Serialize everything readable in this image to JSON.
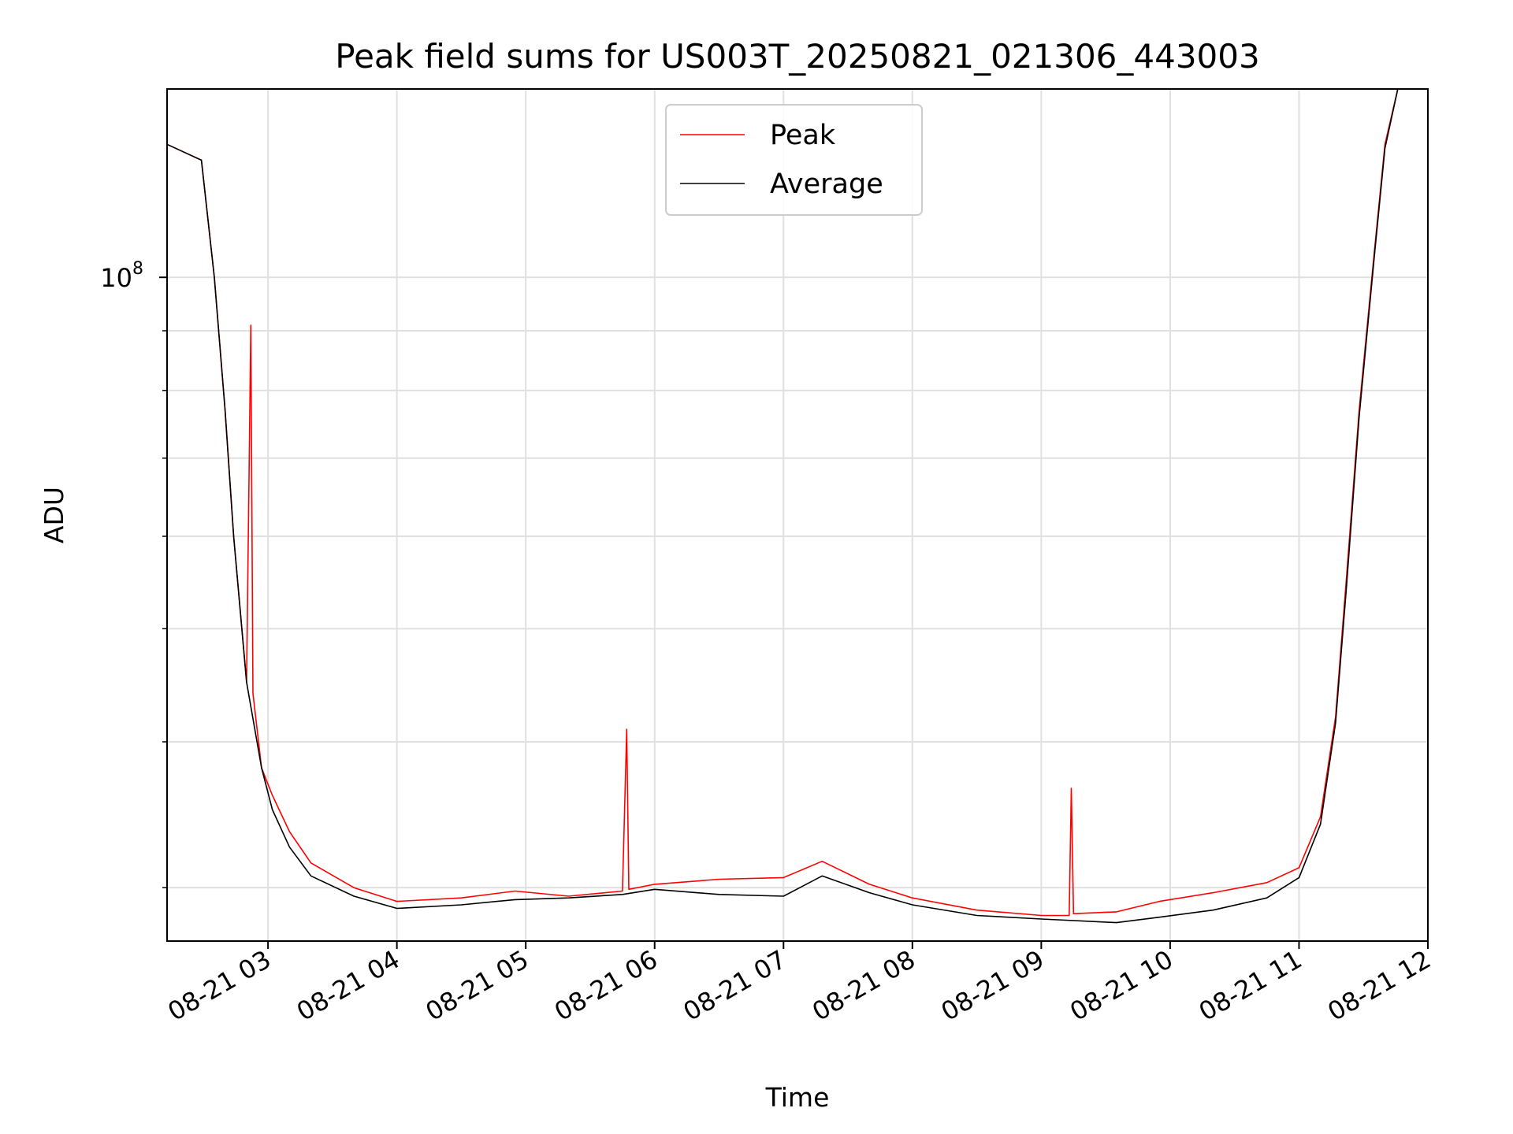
{
  "chart_data": {
    "type": "line",
    "title": "Peak field sums for US003T_20250821_021306_443003",
    "xlabel": "Time",
    "ylabel": "ADU",
    "yscale": "log",
    "xlim": [
      "2025-08-21T02:13",
      "2025-08-21T12:00"
    ],
    "ylim": [
      27000000,
      145000000
    ],
    "grid": true,
    "legend": {
      "position": "top-center"
    },
    "x_ticks": [
      {
        "label": "08-21 03",
        "t": "2025-08-21T03:00"
      },
      {
        "label": "08-21 04",
        "t": "2025-08-21T04:00"
      },
      {
        "label": "08-21 05",
        "t": "2025-08-21T05:00"
      },
      {
        "label": "08-21 06",
        "t": "2025-08-21T06:00"
      },
      {
        "label": "08-21 07",
        "t": "2025-08-21T07:00"
      },
      {
        "label": "08-21 08",
        "t": "2025-08-21T08:00"
      },
      {
        "label": "08-21 09",
        "t": "2025-08-21T09:00"
      },
      {
        "label": "08-21 10",
        "t": "2025-08-21T10:00"
      },
      {
        "label": "08-21 11",
        "t": "2025-08-21T11:00"
      },
      {
        "label": "08-21 12",
        "t": "2025-08-21T12:00"
      }
    ],
    "y_ticks_major": [
      {
        "value": 100000000,
        "base": "10",
        "exp": "8"
      }
    ],
    "y_ticks_minor": [
      30000000,
      40000000,
      50000000,
      60000000,
      70000000,
      80000000,
      90000000
    ],
    "series": [
      {
        "name": "Peak",
        "color": "#ff0000",
        "points": [
          [
            "2025-08-21T02:13",
            130000000
          ],
          [
            "2025-08-21T02:29",
            126000000
          ],
          [
            "2025-08-21T02:35",
            100000000
          ],
          [
            "2025-08-21T02:40",
            77000000
          ],
          [
            "2025-08-21T02:44",
            60000000
          ],
          [
            "2025-08-21T02:50",
            45000000
          ],
          [
            "2025-08-21T02:52",
            91000000
          ],
          [
            "2025-08-21T02:53",
            44000000
          ],
          [
            "2025-08-21T02:57",
            38000000
          ],
          [
            "2025-08-21T03:02",
            36000000
          ],
          [
            "2025-08-21T03:10",
            33500000
          ],
          [
            "2025-08-21T03:20",
            31500000
          ],
          [
            "2025-08-21T03:40",
            30000000
          ],
          [
            "2025-08-21T04:00",
            29200000
          ],
          [
            "2025-08-21T04:30",
            29400000
          ],
          [
            "2025-08-21T04:55",
            29800000
          ],
          [
            "2025-08-21T05:20",
            29500000
          ],
          [
            "2025-08-21T05:45",
            29800000
          ],
          [
            "2025-08-21T05:47",
            41000000
          ],
          [
            "2025-08-21T05:48",
            29900000
          ],
          [
            "2025-08-21T06:00",
            30200000
          ],
          [
            "2025-08-21T06:30",
            30500000
          ],
          [
            "2025-08-21T07:00",
            30600000
          ],
          [
            "2025-08-21T07:18",
            31600000
          ],
          [
            "2025-08-21T07:40",
            30200000
          ],
          [
            "2025-08-21T08:00",
            29400000
          ],
          [
            "2025-08-21T08:30",
            28700000
          ],
          [
            "2025-08-21T09:00",
            28400000
          ],
          [
            "2025-08-21T09:13",
            28400000
          ],
          [
            "2025-08-21T09:14",
            36500000
          ],
          [
            "2025-08-21T09:15",
            28500000
          ],
          [
            "2025-08-21T09:35",
            28600000
          ],
          [
            "2025-08-21T09:55",
            29200000
          ],
          [
            "2025-08-21T10:20",
            29700000
          ],
          [
            "2025-08-21T10:45",
            30300000
          ],
          [
            "2025-08-21T11:00",
            31200000
          ],
          [
            "2025-08-21T11:10",
            34500000
          ],
          [
            "2025-08-21T11:17",
            42000000
          ],
          [
            "2025-08-21T11:22",
            55000000
          ],
          [
            "2025-08-21T11:28",
            77000000
          ],
          [
            "2025-08-21T11:35",
            105000000
          ],
          [
            "2025-08-21T11:40",
            130000000
          ],
          [
            "2025-08-21T11:46",
            145000000
          ]
        ]
      },
      {
        "name": "Average",
        "color": "#000000",
        "points": [
          [
            "2025-08-21T02:13",
            130000000
          ],
          [
            "2025-08-21T02:29",
            126000000
          ],
          [
            "2025-08-21T02:35",
            100000000
          ],
          [
            "2025-08-21T02:40",
            77000000
          ],
          [
            "2025-08-21T02:44",
            60000000
          ],
          [
            "2025-08-21T02:50",
            45000000
          ],
          [
            "2025-08-21T02:57",
            38000000
          ],
          [
            "2025-08-21T03:02",
            35000000
          ],
          [
            "2025-08-21T03:10",
            32500000
          ],
          [
            "2025-08-21T03:20",
            30700000
          ],
          [
            "2025-08-21T03:40",
            29500000
          ],
          [
            "2025-08-21T04:00",
            28800000
          ],
          [
            "2025-08-21T04:30",
            29000000
          ],
          [
            "2025-08-21T04:55",
            29300000
          ],
          [
            "2025-08-21T05:20",
            29400000
          ],
          [
            "2025-08-21T05:45",
            29600000
          ],
          [
            "2025-08-21T06:00",
            29900000
          ],
          [
            "2025-08-21T06:30",
            29600000
          ],
          [
            "2025-08-21T07:00",
            29500000
          ],
          [
            "2025-08-21T07:18",
            30700000
          ],
          [
            "2025-08-21T07:40",
            29700000
          ],
          [
            "2025-08-21T08:00",
            29000000
          ],
          [
            "2025-08-21T08:30",
            28400000
          ],
          [
            "2025-08-21T09:00",
            28200000
          ],
          [
            "2025-08-21T09:35",
            28000000
          ],
          [
            "2025-08-21T09:55",
            28300000
          ],
          [
            "2025-08-21T10:20",
            28700000
          ],
          [
            "2025-08-21T10:45",
            29400000
          ],
          [
            "2025-08-21T11:00",
            30600000
          ],
          [
            "2025-08-21T11:10",
            34000000
          ],
          [
            "2025-08-21T11:17",
            41500000
          ],
          [
            "2025-08-21T11:22",
            54000000
          ],
          [
            "2025-08-21T11:28",
            76000000
          ],
          [
            "2025-08-21T11:35",
            104000000
          ],
          [
            "2025-08-21T11:40",
            129000000
          ],
          [
            "2025-08-21T11:46",
            145000000
          ]
        ]
      }
    ]
  }
}
